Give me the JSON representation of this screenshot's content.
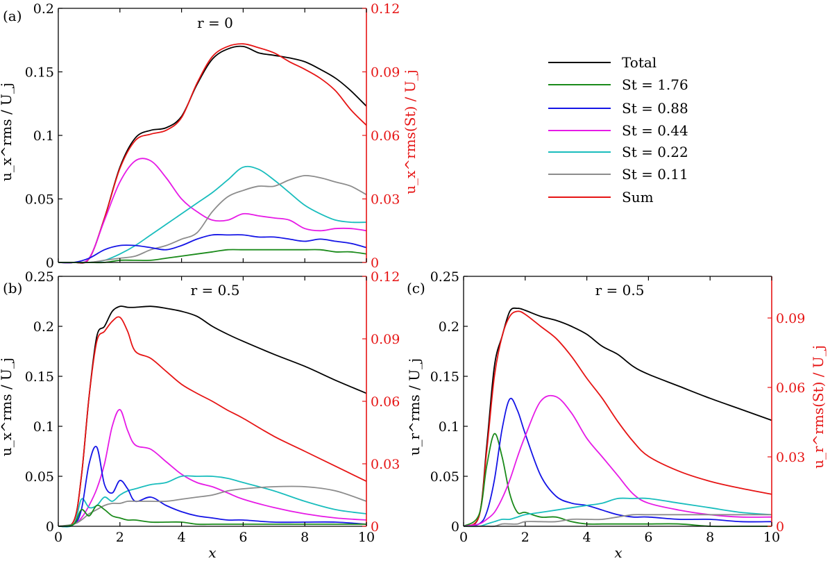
{
  "colors": {
    "total": "#000000",
    "st176": "#1a8a1a",
    "st088": "#1414e6",
    "st044": "#e61ae6",
    "st022": "#19bdbd",
    "st011": "#8c8c8c",
    "sum": "#e61414"
  },
  "legend": {
    "total": "Total",
    "st176": "St = 1.76",
    "st088": "St = 0.88",
    "st044": "St = 0.44",
    "st022": "St = 0.22",
    "st011": "St = 0.11",
    "sum": "Sum"
  },
  "chart_data": [
    {
      "type": "line",
      "panel": "(a)",
      "title": "r = 0",
      "xlabel": "",
      "ylabel_left": "u_x^rms / U_j",
      "ylabel_right": "u_x^rms(St) / U_j",
      "xlim": [
        0,
        10
      ],
      "ylim_left": [
        0,
        0.2
      ],
      "ylim_right": [
        0,
        0.12
      ],
      "xticks": [
        "0",
        "2",
        "4",
        "6",
        "8",
        "10"
      ],
      "yticks_left": [
        "0",
        "0.05",
        "0.1",
        "0.15",
        "0.2"
      ],
      "yticks_right": [
        "0",
        "0.03",
        "0.06",
        "0.09",
        "0.12"
      ],
      "show_x_ticklabels": false,
      "x": [
        0,
        0.5,
        1,
        1.5,
        2,
        2.5,
        3,
        3.5,
        4,
        4.5,
        5,
        5.5,
        6,
        6.5,
        7,
        7.5,
        8,
        8.5,
        9,
        9.5,
        10
      ],
      "series": [
        {
          "key": "total",
          "axis": "left",
          "values": [
            0,
            0,
            0.003,
            0.035,
            0.075,
            0.098,
            0.104,
            0.106,
            0.115,
            0.14,
            0.16,
            0.168,
            0.17,
            0.165,
            0.163,
            0.161,
            0.158,
            0.152,
            0.145,
            0.135,
            0.123
          ]
        },
        {
          "key": "sum",
          "axis": "left",
          "values": [
            0,
            0,
            0.003,
            0.035,
            0.074,
            0.096,
            0.101,
            0.104,
            0.114,
            0.141,
            0.162,
            0.17,
            0.172,
            0.169,
            0.165,
            0.158,
            0.152,
            0.145,
            0.135,
            0.12,
            0.108
          ]
        },
        {
          "key": "st044",
          "axis": "right",
          "values": [
            0,
            0,
            0.002,
            0.02,
            0.038,
            0.048,
            0.048,
            0.04,
            0.03,
            0.024,
            0.02,
            0.02,
            0.023,
            0.022,
            0.021,
            0.02,
            0.016,
            0.015,
            0.016,
            0.016,
            0.015
          ]
        },
        {
          "key": "st022",
          "axis": "right",
          "values": [
            0,
            0,
            0,
            0.001,
            0.004,
            0.008,
            0.013,
            0.018,
            0.023,
            0.028,
            0.033,
            0.039,
            0.045,
            0.044,
            0.039,
            0.033,
            0.027,
            0.023,
            0.02,
            0.019,
            0.019
          ]
        },
        {
          "key": "st011",
          "axis": "right",
          "values": [
            0,
            0,
            0,
            0.001,
            0.002,
            0.003,
            0.006,
            0.008,
            0.011,
            0.014,
            0.024,
            0.031,
            0.034,
            0.036,
            0.036,
            0.039,
            0.041,
            0.04,
            0.038,
            0.036,
            0.032
          ]
        },
        {
          "key": "st088",
          "axis": "right",
          "values": [
            0,
            0,
            0.002,
            0.006,
            0.008,
            0.008,
            0.007,
            0.006,
            0.008,
            0.011,
            0.013,
            0.013,
            0.013,
            0.012,
            0.012,
            0.011,
            0.01,
            0.011,
            0.01,
            0.009,
            0.007
          ]
        },
        {
          "key": "st176",
          "axis": "right",
          "values": [
            0,
            0,
            0,
            0,
            0.001,
            0.001,
            0.001,
            0.002,
            0.003,
            0.004,
            0.005,
            0.006,
            0.006,
            0.006,
            0.006,
            0.006,
            0.006,
            0.006,
            0.005,
            0.005,
            0.004
          ]
        }
      ]
    },
    {
      "type": "line",
      "panel": "(b)",
      "title": "r = 0.5",
      "xlabel": "x",
      "ylabel_left": "u_x^rms / U_j",
      "ylabel_right": "",
      "xlim": [
        0,
        10
      ],
      "ylim_left": [
        0,
        0.25
      ],
      "ylim_right": [
        0,
        0.12
      ],
      "xticks": [
        "0",
        "2",
        "4",
        "6",
        "8",
        "10"
      ],
      "yticks_left": [
        "0",
        "0.05",
        "0.1",
        "0.15",
        "0.2",
        "0.25"
      ],
      "yticks_right": [
        "0",
        "0.03",
        "0.06",
        "0.09",
        "0.12"
      ],
      "show_x_ticklabels": true,
      "x": [
        0,
        0.5,
        0.75,
        1,
        1.25,
        1.5,
        1.75,
        2,
        2.25,
        2.5,
        3,
        3.5,
        4,
        4.5,
        5,
        5.5,
        6,
        7,
        8,
        9,
        10
      ],
      "series": [
        {
          "key": "total",
          "axis": "left",
          "values": [
            0,
            0.005,
            0.05,
            0.13,
            0.19,
            0.2,
            0.215,
            0.22,
            0.219,
            0.219,
            0.22,
            0.218,
            0.215,
            0.21,
            0.2,
            0.192,
            0.185,
            0.172,
            0.16,
            0.146,
            0.133
          ]
        },
        {
          "key": "sum",
          "axis": "left",
          "values": [
            0,
            0.005,
            0.05,
            0.13,
            0.185,
            0.195,
            0.205,
            0.209,
            0.195,
            0.175,
            0.168,
            0.155,
            0.142,
            0.133,
            0.125,
            0.116,
            0.108,
            0.09,
            0.075,
            0.06,
            0.045
          ]
        },
        {
          "key": "st044",
          "axis": "right",
          "values": [
            0,
            0.001,
            0.004,
            0.01,
            0.018,
            0.03,
            0.048,
            0.056,
            0.046,
            0.039,
            0.037,
            0.031,
            0.025,
            0.021,
            0.019,
            0.016,
            0.013,
            0.009,
            0.006,
            0.004,
            0.003
          ]
        },
        {
          "key": "st022",
          "axis": "right",
          "values": [
            0,
            0.001,
            0.013,
            0.009,
            0.01,
            0.014,
            0.012,
            0.015,
            0.017,
            0.018,
            0.02,
            0.021,
            0.024,
            0.024,
            0.024,
            0.023,
            0.021,
            0.017,
            0.012,
            0.008,
            0.006
          ]
        },
        {
          "key": "st088",
          "axis": "right",
          "values": [
            0,
            0.001,
            0.008,
            0.03,
            0.038,
            0.02,
            0.016,
            0.022,
            0.018,
            0.012,
            0.014,
            0.01,
            0.007,
            0.005,
            0.004,
            0.003,
            0.003,
            0.002,
            0.002,
            0.002,
            0.001
          ]
        },
        {
          "key": "st011",
          "axis": "right",
          "values": [
            0,
            0.001,
            0.003,
            0.006,
            0.008,
            0.01,
            0.011,
            0.011,
            0.012,
            0.012,
            0.012,
            0.012,
            0.013,
            0.014,
            0.015,
            0.017,
            0.018,
            0.019,
            0.019,
            0.017,
            0.012
          ]
        },
        {
          "key": "st176",
          "axis": "right",
          "values": [
            0,
            0.001,
            0.008,
            0.005,
            0.01,
            0.008,
            0.005,
            0.004,
            0.003,
            0.003,
            0.002,
            0.002,
            0.002,
            0.001,
            0.001,
            0.001,
            0.001,
            0.001,
            0.001,
            0.001,
            0.001
          ]
        }
      ]
    },
    {
      "type": "line",
      "panel": "(c)",
      "title": "r = 0.5",
      "xlabel": "x",
      "ylabel_left": "u_r^rms / U_j",
      "ylabel_right": "u_r^rms(St) / U_j",
      "xlim": [
        0,
        10
      ],
      "ylim_left": [
        0,
        0.25
      ],
      "ylim_right": [
        0,
        0.108
      ],
      "xticks": [
        "0",
        "2",
        "4",
        "6",
        "8",
        "10"
      ],
      "yticks_left": [
        "0",
        "0.05",
        "0.1",
        "0.15",
        "0.2",
        "0.25"
      ],
      "yticks_right": [
        "0",
        "0.03",
        "0.06",
        "0.09"
      ],
      "show_x_ticklabels": true,
      "x": [
        0,
        0.5,
        0.75,
        1,
        1.25,
        1.5,
        1.75,
        2,
        2.5,
        3,
        3.5,
        4,
        4.5,
        5,
        5.5,
        6,
        7,
        8,
        9,
        10
      ],
      "series": [
        {
          "key": "total",
          "axis": "left",
          "values": [
            0,
            0.01,
            0.08,
            0.16,
            0.19,
            0.215,
            0.218,
            0.216,
            0.21,
            0.206,
            0.2,
            0.192,
            0.18,
            0.172,
            0.16,
            0.152,
            0.14,
            0.128,
            0.117,
            0.106
          ]
        },
        {
          "key": "sum",
          "axis": "left",
          "values": [
            0,
            0.01,
            0.075,
            0.15,
            0.19,
            0.21,
            0.215,
            0.212,
            0.2,
            0.188,
            0.17,
            0.148,
            0.128,
            0.105,
            0.085,
            0.07,
            0.055,
            0.045,
            0.038,
            0.032
          ]
        },
        {
          "key": "st176",
          "axis": "right",
          "values": [
            0,
            0.005,
            0.026,
            0.04,
            0.03,
            0.014,
            0.006,
            0.006,
            0.004,
            0.004,
            0.002,
            0.001,
            0.001,
            0.001,
            0.001,
            0.001,
            0.001,
            0,
            0,
            0
          ]
        },
        {
          "key": "st088",
          "axis": "right",
          "values": [
            0,
            0.001,
            0.006,
            0.02,
            0.042,
            0.055,
            0.05,
            0.04,
            0.022,
            0.013,
            0.01,
            0.009,
            0.007,
            0.005,
            0.004,
            0.004,
            0.003,
            0.003,
            0.002,
            0.002
          ]
        },
        {
          "key": "st044",
          "axis": "right",
          "values": [
            0,
            0.001,
            0.003,
            0.006,
            0.012,
            0.02,
            0.03,
            0.039,
            0.054,
            0.056,
            0.049,
            0.038,
            0.03,
            0.022,
            0.014,
            0.01,
            0.007,
            0.005,
            0.004,
            0.004
          ]
        },
        {
          "key": "st022",
          "axis": "right",
          "values": [
            0,
            0,
            0.001,
            0.002,
            0.003,
            0.003,
            0.004,
            0.005,
            0.006,
            0.007,
            0.008,
            0.009,
            0.01,
            0.012,
            0.012,
            0.012,
            0.01,
            0.008,
            0.006,
            0.005
          ]
        },
        {
          "key": "st011",
          "axis": "right",
          "values": [
            0,
            0,
            0,
            0,
            0.001,
            0.001,
            0.001,
            0.002,
            0.002,
            0.002,
            0.003,
            0.003,
            0.003,
            0.004,
            0.005,
            0.005,
            0.005,
            0.005,
            0.005,
            0.005
          ]
        }
      ]
    }
  ]
}
